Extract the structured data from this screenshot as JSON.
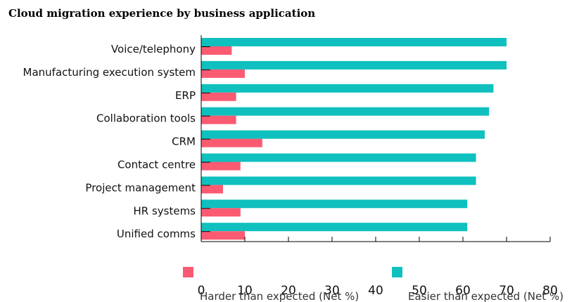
{
  "chart_data": {
    "type": "bar",
    "orientation": "horizontal",
    "title": "Cloud migration experience by business application",
    "categories": [
      "Voice/telephony",
      "Manufacturing execution system",
      "ERP",
      "Collaboration tools",
      "CRM",
      "Contact centre",
      "Project management",
      "HR systems",
      "Unified comms"
    ],
    "series": [
      {
        "name": "Easier than expected (Net %)",
        "color": "#0fc0be",
        "values": [
          70,
          70,
          67,
          66,
          65,
          63,
          63,
          61,
          61
        ]
      },
      {
        "name": "Harder than expected (Net %)",
        "color": "#fa5b72",
        "values": [
          7,
          10,
          8,
          8,
          14,
          9,
          5,
          9,
          10
        ]
      }
    ],
    "xlim": [
      0,
      80
    ],
    "xticks": [
      0,
      10,
      20,
      30,
      40,
      50,
      60,
      70,
      80
    ],
    "xlabel": "",
    "ylabel": "",
    "grid": false,
    "legend_position": "bottom"
  }
}
